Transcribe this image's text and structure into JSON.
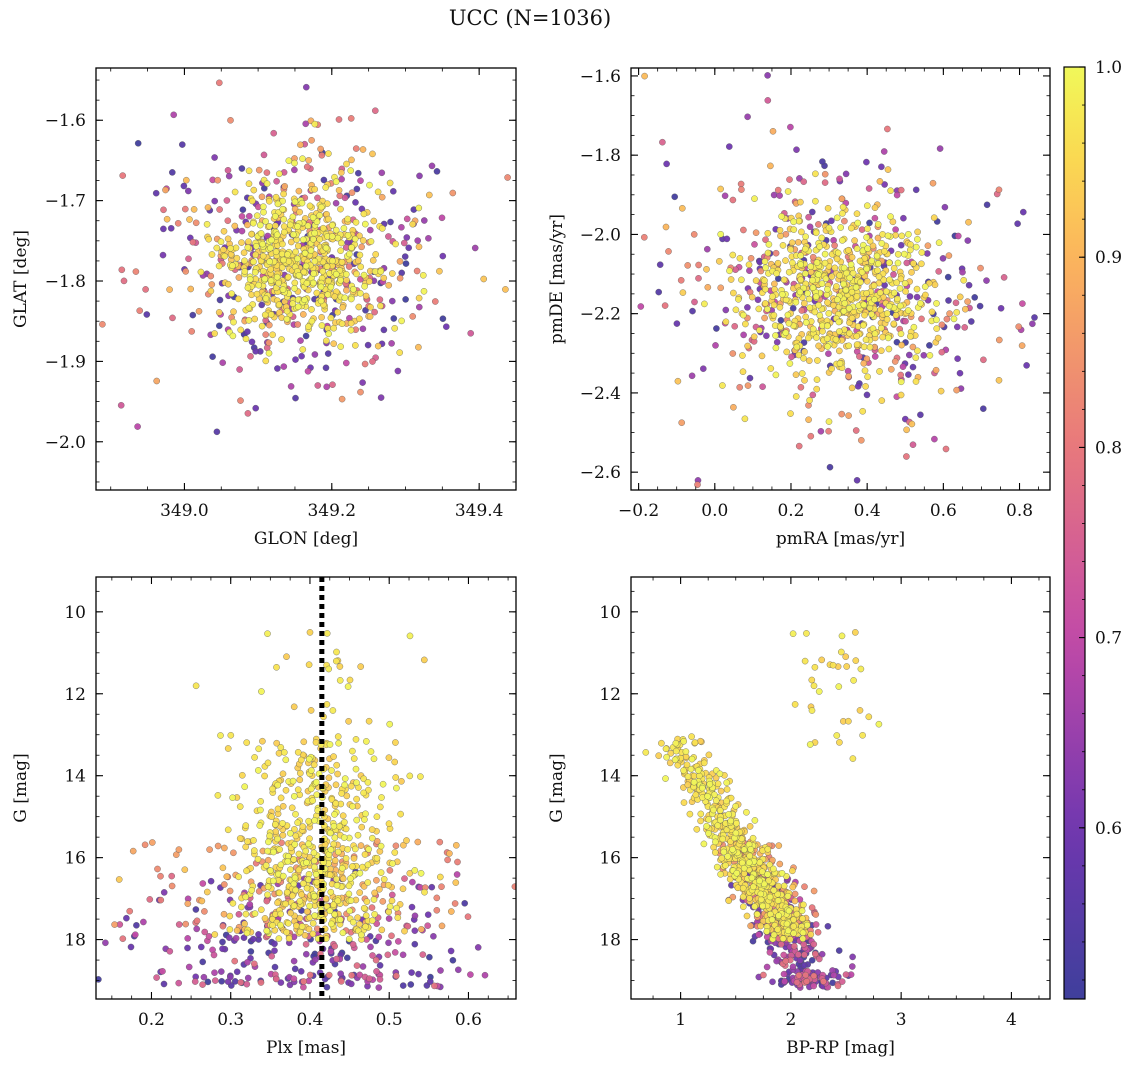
{
  "title": "UCC (N=1036)",
  "chart_data": [
    {
      "type": "scatter",
      "panel": "top-left",
      "xlabel": "GLON [deg]",
      "ylabel": "GLAT [deg]",
      "xlim": [
        348.88,
        349.45
      ],
      "ylim": [
        -2.06,
        -1.535
      ],
      "invert_y": false,
      "xticks": [
        349.0,
        349.2,
        349.4
      ],
      "xtick_labels": [
        "349.0",
        "349.2",
        "349.4"
      ],
      "yticks": [
        -1.6,
        -1.7,
        -1.8,
        -1.9,
        -2.0
      ],
      "ytick_labels": [
        "−1.6",
        "−1.7",
        "−1.8",
        "−1.9",
        "−2.0"
      ],
      "center": [
        349.16,
        -1.775
      ],
      "spread": [
        0.075,
        0.06
      ],
      "n_points": 1036
    },
    {
      "type": "scatter",
      "panel": "top-right",
      "xlabel": "pmRA [mas/yr]",
      "ylabel": "pmDE [mas/yr]",
      "xlim": [
        -0.22,
        0.88
      ],
      "ylim": [
        -2.645,
        -1.58
      ],
      "invert_y": false,
      "xticks": [
        -0.2,
        0.0,
        0.2,
        0.4,
        0.6,
        0.8
      ],
      "xtick_labels": [
        "−0.2",
        "0.0",
        "0.2",
        "0.4",
        "0.6",
        "0.8"
      ],
      "yticks": [
        -1.6,
        -1.8,
        -2.0,
        -2.2,
        -2.4,
        -2.6
      ],
      "ytick_labels": [
        "−1.6",
        "−1.8",
        "−2.0",
        "−2.2",
        "−2.4",
        "−2.6"
      ],
      "center": [
        0.33,
        -2.15
      ],
      "spread": [
        0.17,
        0.14
      ],
      "n_points": 1036
    },
    {
      "type": "scatter",
      "panel": "bottom-left",
      "xlabel": "Plx [mas]",
      "ylabel": "G [mag]",
      "xlim": [
        0.13,
        0.66
      ],
      "ylim": [
        9.15,
        19.45
      ],
      "invert_y": true,
      "xticks": [
        0.2,
        0.3,
        0.4,
        0.5,
        0.6
      ],
      "xtick_labels": [
        "0.2",
        "0.3",
        "0.4",
        "0.5",
        "0.6"
      ],
      "yticks": [
        10,
        12,
        14,
        16,
        18
      ],
      "ytick_labels": [
        "10",
        "12",
        "14",
        "16",
        "18"
      ],
      "vline_x": 0.415,
      "vline_style": "dotted",
      "n_points": 1036
    },
    {
      "type": "scatter",
      "panel": "bottom-right",
      "xlabel": "BP-RP [mag]",
      "ylabel": "G [mag]",
      "xlim": [
        0.55,
        4.35
      ],
      "ylim": [
        9.15,
        19.45
      ],
      "invert_y": true,
      "xticks": [
        1,
        2,
        3,
        4
      ],
      "xtick_labels": [
        "1",
        "2",
        "3",
        "4"
      ],
      "yticks": [
        10,
        12,
        14,
        16,
        18
      ],
      "ytick_labels": [
        "10",
        "12",
        "14",
        "16",
        "18"
      ],
      "n_points": 1036
    }
  ],
  "colorbar": {
    "label": "",
    "range": [
      0.51,
      1.0
    ],
    "ticks": [
      1.0,
      0.9,
      0.8,
      0.7,
      0.6
    ],
    "tick_labels": [
      "1.0",
      "0.9",
      "0.8",
      "0.7",
      "0.6"
    ],
    "colormap": "plasma"
  },
  "colors": {
    "low": "#3f3f9c",
    "mid": "#c24aa8",
    "midhigh": "#e8787c",
    "high": "#fbd24e",
    "top": "#f1f85a",
    "edge": "#555555"
  }
}
